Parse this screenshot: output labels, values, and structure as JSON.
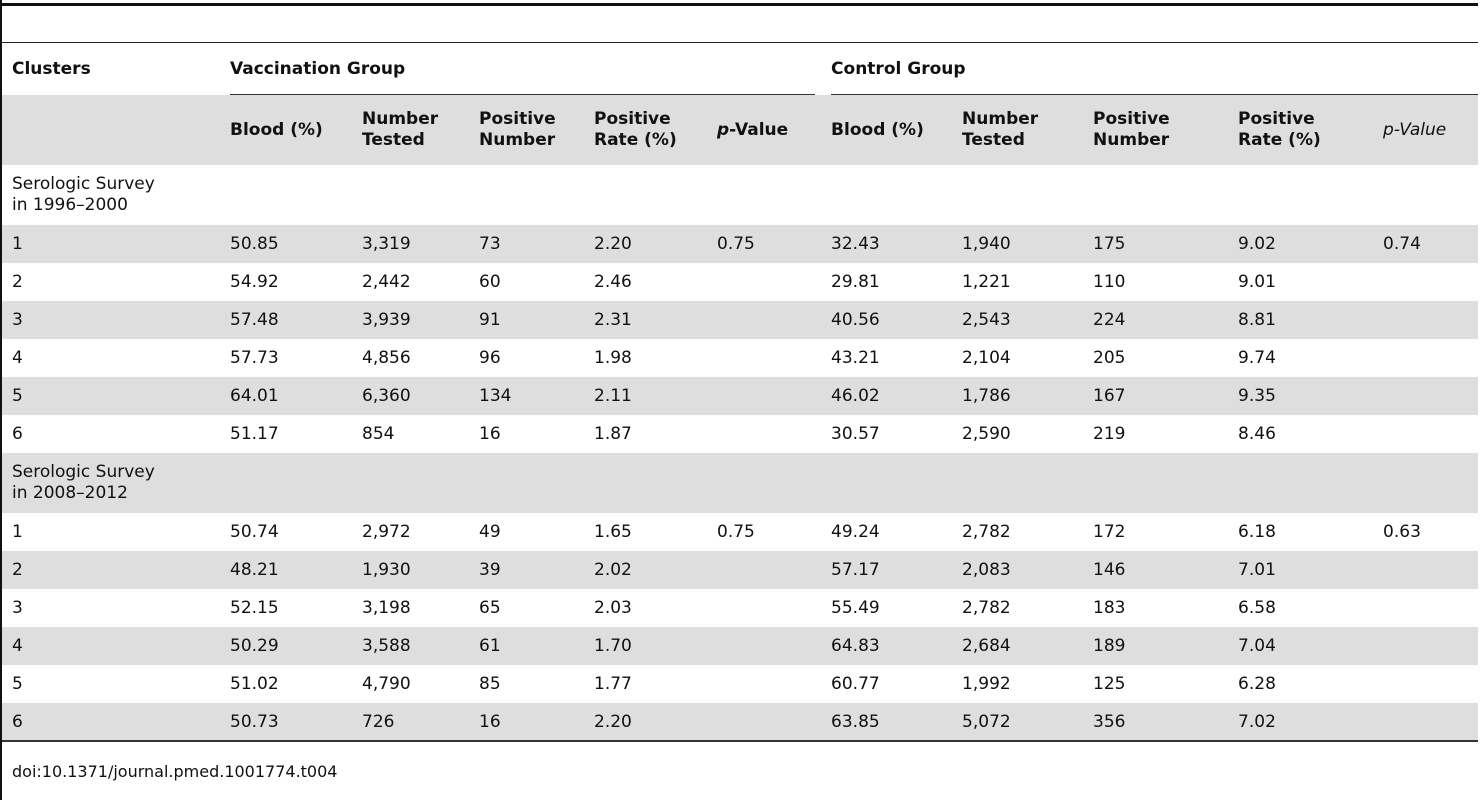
{
  "header": {
    "clusters": "Clusters",
    "vaccination_group": "Vaccination Group",
    "control_group": "Control Group",
    "blood": "Blood (%)",
    "number_tested": [
      "Number",
      "Tested"
    ],
    "positive_number": [
      "Positive",
      "Number"
    ],
    "positive_rate": [
      "Positive",
      "Rate (%)"
    ],
    "p_value_italic": "p",
    "p_value_rest": "-Value",
    "p_value_control": "p-Value"
  },
  "sections": [
    {
      "title": [
        "Serologic Survey",
        "in 1996–2000"
      ],
      "rows": [
        [
          "1",
          "50.85",
          "3,319",
          "73",
          "2.20",
          "0.75",
          "32.43",
          "1,940",
          "175",
          "9.02",
          "0.74"
        ],
        [
          "2",
          "54.92",
          "2,442",
          "60",
          "2.46",
          "",
          "29.81",
          "1,221",
          "110",
          "9.01",
          ""
        ],
        [
          "3",
          "57.48",
          "3,939",
          "91",
          "2.31",
          "",
          "40.56",
          "2,543",
          "224",
          "8.81",
          ""
        ],
        [
          "4",
          "57.73",
          "4,856",
          "96",
          "1.98",
          "",
          "43.21",
          "2,104",
          "205",
          "9.74",
          ""
        ],
        [
          "5",
          "64.01",
          "6,360",
          "134",
          "2.11",
          "",
          "46.02",
          "1,786",
          "167",
          "9.35",
          ""
        ],
        [
          "6",
          "51.17",
          "854",
          "16",
          "1.87",
          "",
          "30.57",
          "2,590",
          "219",
          "8.46",
          ""
        ]
      ]
    },
    {
      "title": [
        "Serologic Survey",
        "in 2008–2012"
      ],
      "rows": [
        [
          "1",
          "50.74",
          "2,972",
          "49",
          "1.65",
          "0.75",
          "49.24",
          "2,782",
          "172",
          "6.18",
          "0.63"
        ],
        [
          "2",
          "48.21",
          "1,930",
          "39",
          "2.02",
          "",
          "57.17",
          "2,083",
          "146",
          "7.01",
          ""
        ],
        [
          "3",
          "52.15",
          "3,198",
          "65",
          "2.03",
          "",
          "55.49",
          "2,782",
          "183",
          "6.58",
          ""
        ],
        [
          "4",
          "50.29",
          "3,588",
          "61",
          "1.70",
          "",
          "64.83",
          "2,684",
          "189",
          "7.04",
          ""
        ],
        [
          "5",
          "51.02",
          "4,790",
          "85",
          "1.77",
          "",
          "60.77",
          "1,992",
          "125",
          "6.28",
          ""
        ],
        [
          "6",
          "50.73",
          "726",
          "16",
          "2.20",
          "",
          "63.85",
          "5,072",
          "356",
          "7.02",
          ""
        ]
      ]
    }
  ],
  "doi": "doi:10.1371/journal.pmed.1001774.t004"
}
